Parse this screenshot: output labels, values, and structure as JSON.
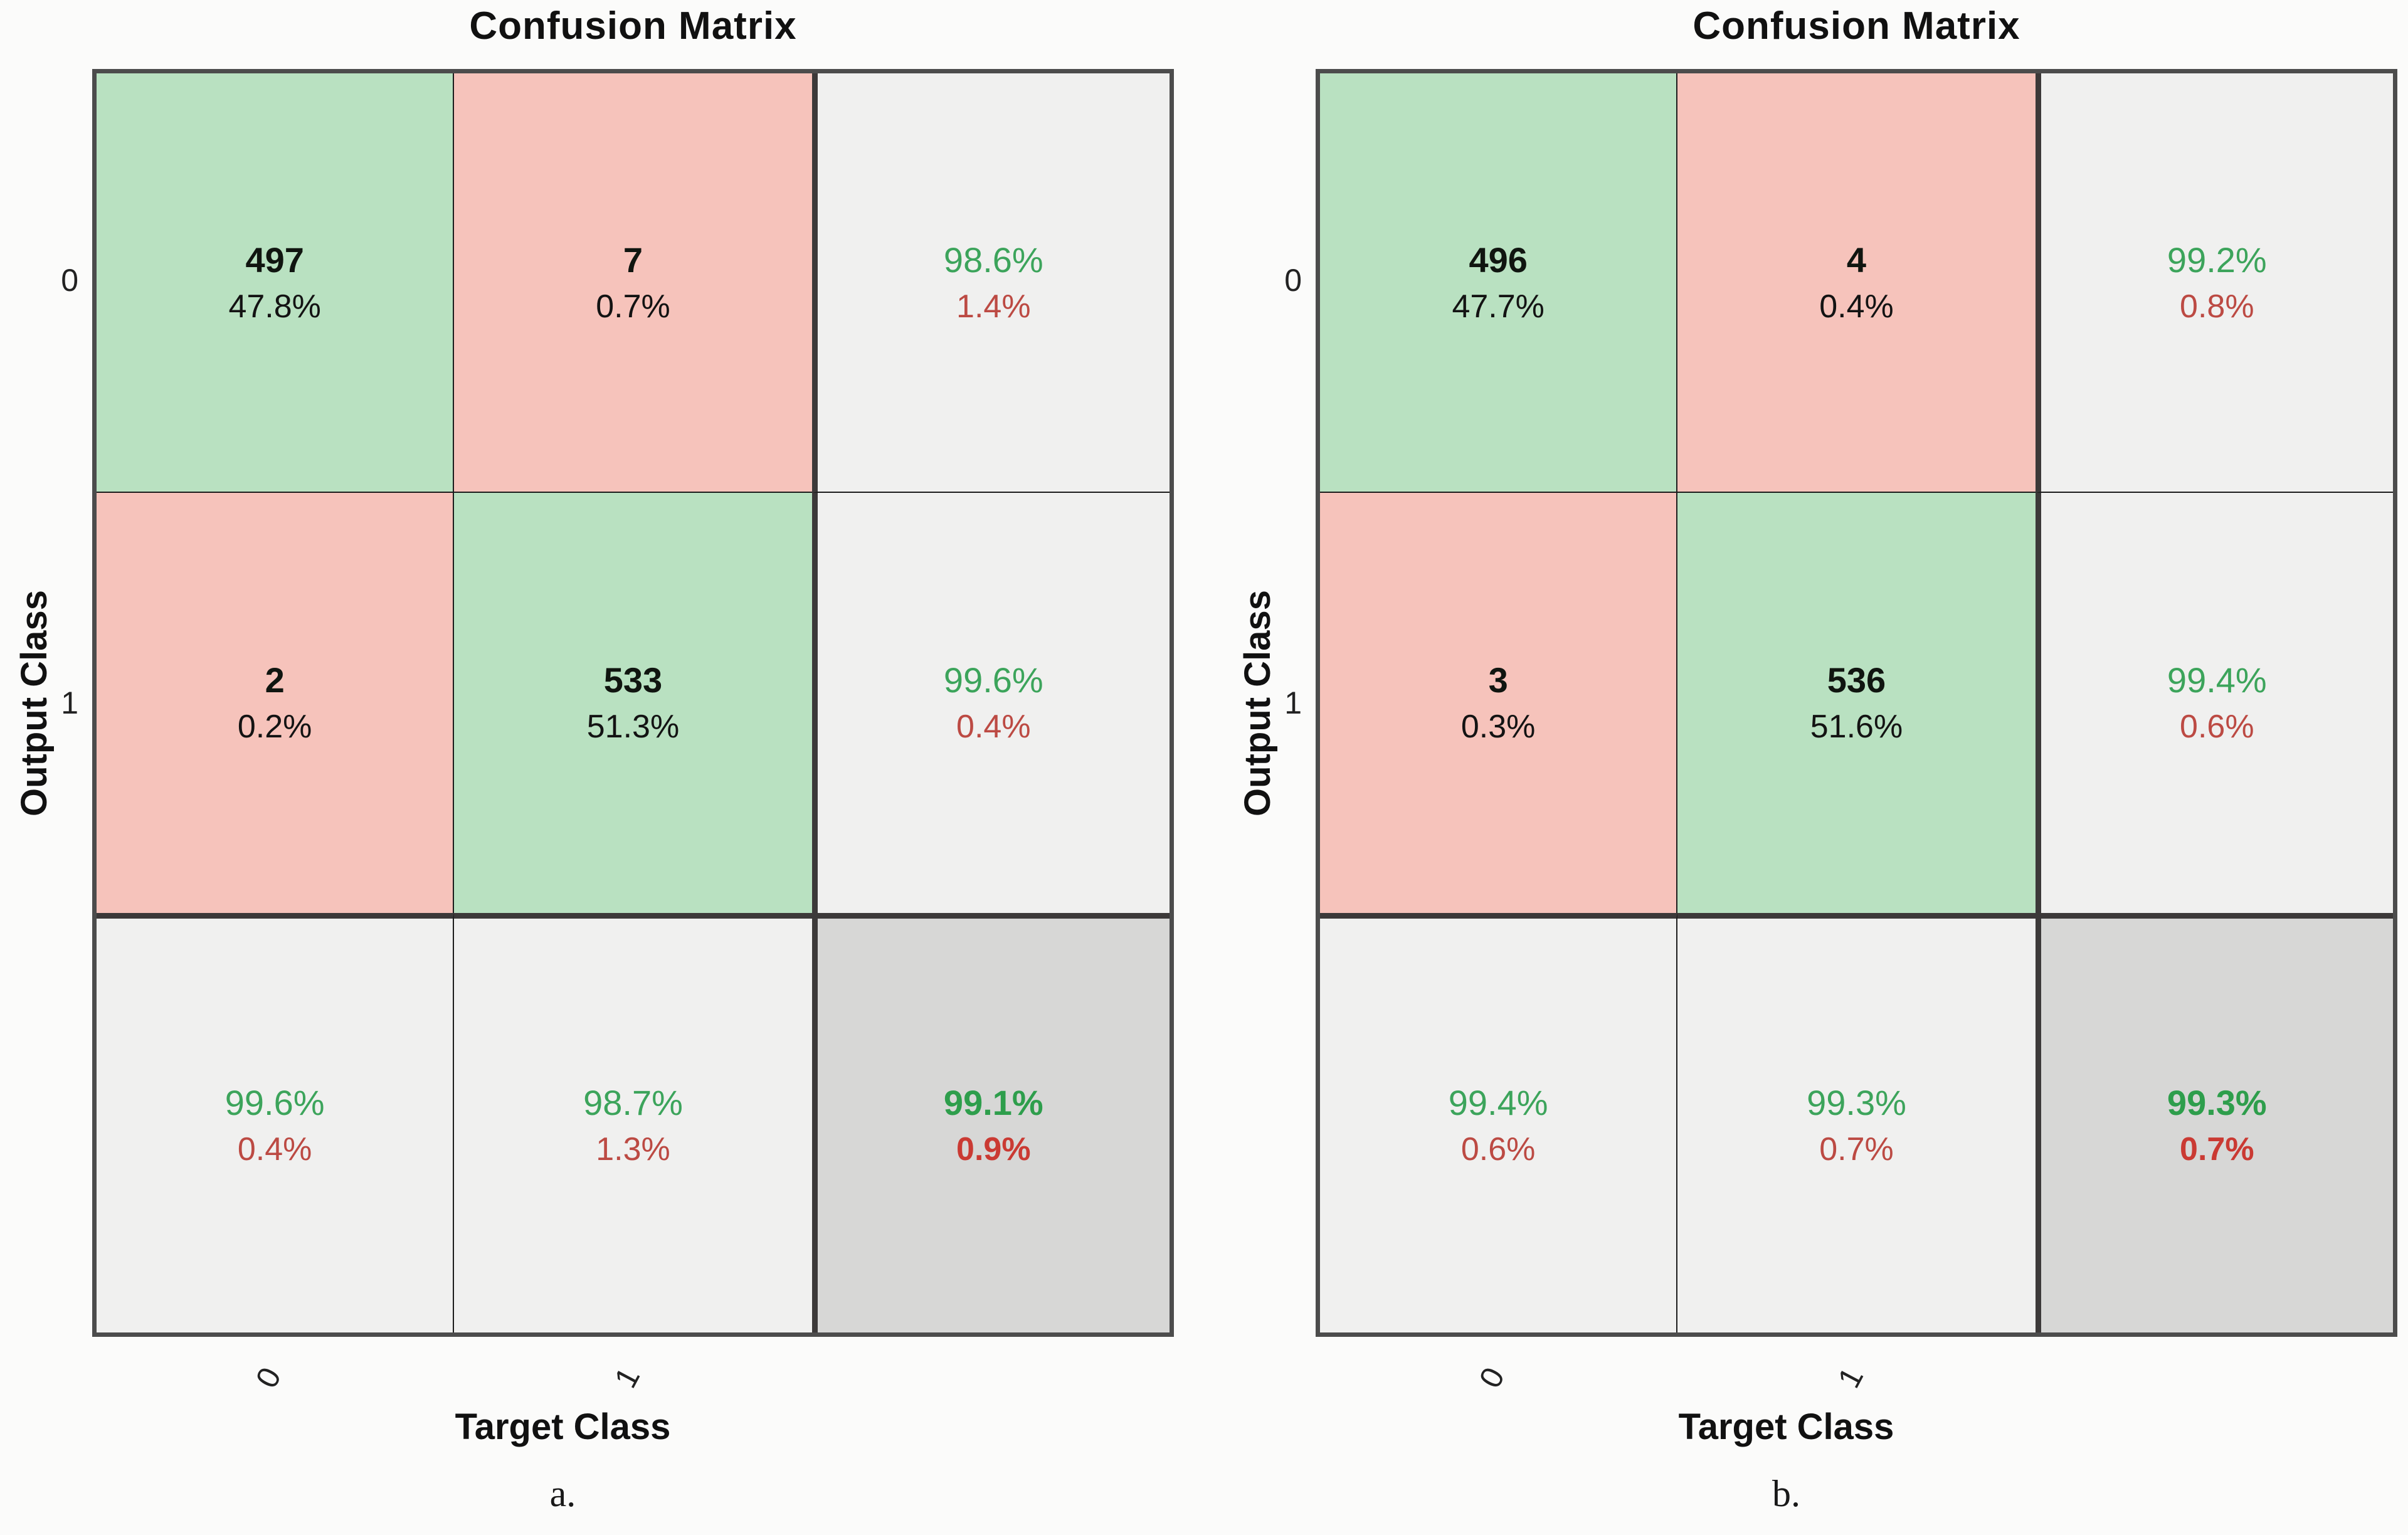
{
  "colors": {
    "diagonal_cell_green": "#b9e1c1",
    "offdiagonal_cell_red": "#f6c3bb",
    "summary_cell_gray": "#f0f0ef",
    "overall_cell_gray": "#d7d7d6",
    "percent_text_green": "#3ca45b",
    "percent_text_red": "#bc4a43",
    "thin_gridline": "#1c1c1c",
    "thick_gridline": "#3c3939"
  },
  "chart_data": [
    {
      "type": "heatmap",
      "title": "Confusion Matrix",
      "xlabel": "Target Class",
      "ylabel": "Output Class",
      "x_ticks": [
        "0",
        "1"
      ],
      "y_ticks": [
        "0",
        "1"
      ],
      "caption": "a.",
      "classes": [
        "0",
        "1"
      ],
      "matrix_counts": [
        [
          497,
          7
        ],
        [
          2,
          533
        ]
      ],
      "matrix_percent_of_total": [
        [
          "47.8%",
          "0.7%"
        ],
        [
          "0.2%",
          "51.3%"
        ]
      ],
      "row_summary_green_red": [
        [
          "98.6%",
          "1.4%"
        ],
        [
          "99.6%",
          "0.4%"
        ]
      ],
      "col_summary_green_red": [
        [
          "99.6%",
          "0.4%"
        ],
        [
          "98.7%",
          "1.3%"
        ]
      ],
      "overall_green_red": [
        "99.1%",
        "0.9%"
      ],
      "cells": [
        {
          "line1": "497",
          "line2": "47.8%"
        },
        {
          "line1": "7",
          "line2": "0.7%"
        },
        {
          "line1": "98.6%",
          "line2": "1.4%"
        },
        {
          "line1": "2",
          "line2": "0.2%"
        },
        {
          "line1": "533",
          "line2": "51.3%"
        },
        {
          "line1": "99.6%",
          "line2": "0.4%"
        },
        {
          "line1": "99.6%",
          "line2": "0.4%"
        },
        {
          "line1": "98.7%",
          "line2": "1.3%"
        },
        {
          "line1": "99.1%",
          "line2": "0.9%"
        }
      ]
    },
    {
      "type": "heatmap",
      "title": "Confusion Matrix",
      "xlabel": "Target Class",
      "ylabel": "Output Class",
      "x_ticks": [
        "0",
        "1"
      ],
      "y_ticks": [
        "0",
        "1"
      ],
      "caption": "b.",
      "classes": [
        "0",
        "1"
      ],
      "matrix_counts": [
        [
          496,
          4
        ],
        [
          3,
          536
        ]
      ],
      "matrix_percent_of_total": [
        [
          "47.7%",
          "0.4%"
        ],
        [
          "0.3%",
          "51.6%"
        ]
      ],
      "row_summary_green_red": [
        [
          "99.2%",
          "0.8%"
        ],
        [
          "99.4%",
          "0.6%"
        ]
      ],
      "col_summary_green_red": [
        [
          "99.4%",
          "0.6%"
        ],
        [
          "99.3%",
          "0.7%"
        ]
      ],
      "overall_green_red": [
        "99.3%",
        "0.7%"
      ],
      "cells": [
        {
          "line1": "496",
          "line2": "47.7%"
        },
        {
          "line1": "4",
          "line2": "0.4%"
        },
        {
          "line1": "99.2%",
          "line2": "0.8%"
        },
        {
          "line1": "3",
          "line2": "0.3%"
        },
        {
          "line1": "536",
          "line2": "51.6%"
        },
        {
          "line1": "99.4%",
          "line2": "0.6%"
        },
        {
          "line1": "99.4%",
          "line2": "0.6%"
        },
        {
          "line1": "99.3%",
          "line2": "0.7%"
        },
        {
          "line1": "99.3%",
          "line2": "0.7%"
        }
      ]
    }
  ]
}
